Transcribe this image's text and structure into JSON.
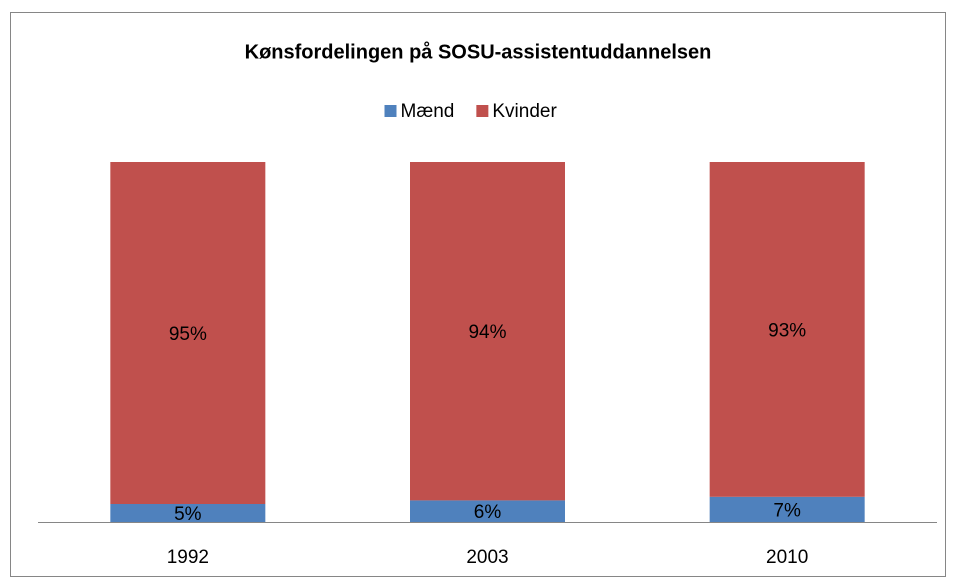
{
  "chart_data": {
    "type": "stacked_bar",
    "title": "Kønsfordelingen på SOSU-assistentuddannelsen",
    "categories": [
      "1992",
      "2003",
      "2010"
    ],
    "series": [
      {
        "name": "Mænd",
        "color": "#4f81bd",
        "values": [
          5,
          6,
          7
        ],
        "value_labels": [
          "5%",
          "6%",
          "7%"
        ]
      },
      {
        "name": "Kvinder",
        "color": "#c0504d",
        "values": [
          95,
          94,
          93
        ],
        "value_labels": [
          "95%",
          "94%",
          "93%"
        ]
      }
    ],
    "legend": "top"
  }
}
